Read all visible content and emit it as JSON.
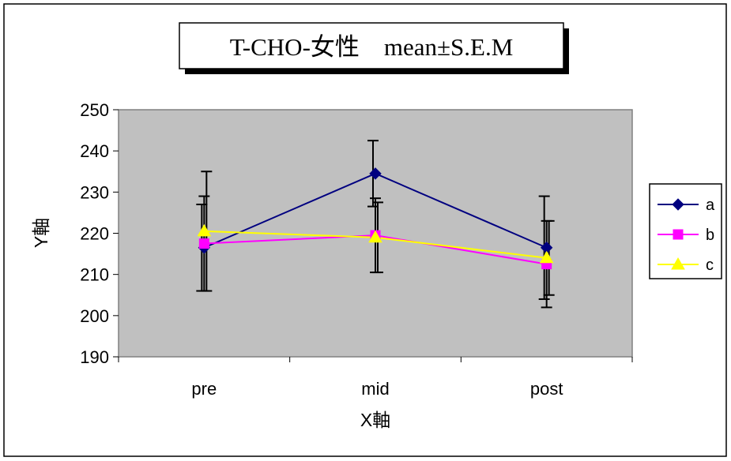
{
  "chart_data": {
    "type": "line",
    "title": "T-CHO-女性　mean±S.E.M",
    "xlabel": "X軸",
    "ylabel": "Y軸",
    "categories": [
      "pre",
      "mid",
      "post"
    ],
    "ylim": [
      190,
      250
    ],
    "yticks": [
      190,
      200,
      210,
      220,
      230,
      240,
      250
    ],
    "grid": false,
    "legend_position": "right",
    "plot_background": "#c0c0c0",
    "series": [
      {
        "name": "a",
        "color": "#000080",
        "marker": "diamond",
        "values": [
          216.5,
          234.5,
          216.5
        ],
        "error": [
          10.5,
          8.0,
          12.5
        ]
      },
      {
        "name": "b",
        "color": "#ff00ff",
        "marker": "square",
        "values": [
          217.5,
          219.5,
          212.5
        ],
        "error": [
          11.5,
          9.0,
          10.5
        ]
      },
      {
        "name": "c",
        "color": "#ffff00",
        "marker": "triangle",
        "values": [
          220.5,
          219.0,
          214.0
        ],
        "error": [
          14.5,
          8.5,
          9.0
        ]
      }
    ]
  }
}
